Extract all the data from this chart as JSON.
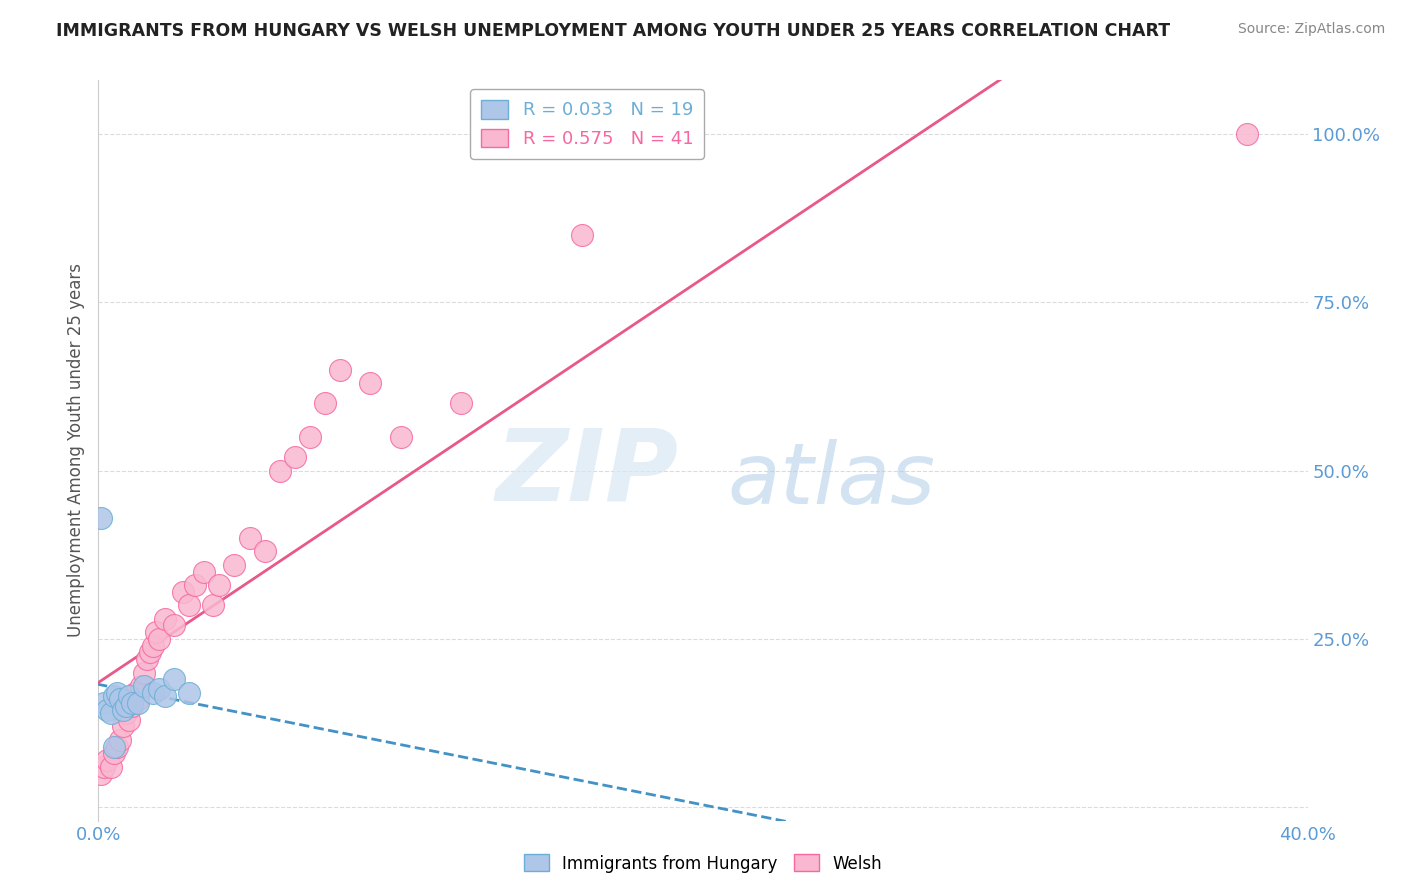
{
  "title": "IMMIGRANTS FROM HUNGARY VS WELSH UNEMPLOYMENT AMONG YOUTH UNDER 25 YEARS CORRELATION CHART",
  "source": "Source: ZipAtlas.com",
  "ylabel": "Unemployment Among Youth under 25 years",
  "xlim": [
    0.0,
    0.4
  ],
  "ylim": [
    -0.02,
    1.08
  ],
  "xticks": [
    0.0,
    0.05,
    0.1,
    0.15,
    0.2,
    0.25,
    0.3,
    0.35,
    0.4
  ],
  "xticklabels": [
    "0.0%",
    "",
    "",
    "",
    "",
    "",
    "",
    "",
    "40.0%"
  ],
  "yticks": [
    0.0,
    0.25,
    0.5,
    0.75,
    1.0
  ],
  "yticklabels": [
    "",
    "25.0%",
    "50.0%",
    "75.0%",
    "100.0%"
  ],
  "legend_entries": [
    {
      "label": "R = 0.033   N = 19",
      "color": "#6baed6"
    },
    {
      "label": "R = 0.575   N = 41",
      "color": "#f768a1"
    }
  ],
  "hungary_x": [
    0.001,
    0.002,
    0.003,
    0.004,
    0.005,
    0.006,
    0.007,
    0.008,
    0.009,
    0.01,
    0.011,
    0.013,
    0.015,
    0.018,
    0.02,
    0.022,
    0.025,
    0.03,
    0.005
  ],
  "hungary_y": [
    0.43,
    0.155,
    0.145,
    0.14,
    0.165,
    0.17,
    0.16,
    0.145,
    0.15,
    0.165,
    0.155,
    0.155,
    0.18,
    0.17,
    0.175,
    0.165,
    0.19,
    0.17,
    0.09
  ],
  "welsh_x": [
    0.001,
    0.002,
    0.003,
    0.004,
    0.005,
    0.006,
    0.007,
    0.008,
    0.009,
    0.01,
    0.011,
    0.012,
    0.013,
    0.014,
    0.015,
    0.016,
    0.017,
    0.018,
    0.019,
    0.02,
    0.022,
    0.025,
    0.028,
    0.03,
    0.032,
    0.035,
    0.038,
    0.04,
    0.045,
    0.05,
    0.055,
    0.06,
    0.065,
    0.07,
    0.075,
    0.08,
    0.09,
    0.1,
    0.12,
    0.16,
    0.38
  ],
  "welsh_y": [
    0.05,
    0.06,
    0.07,
    0.06,
    0.08,
    0.09,
    0.1,
    0.12,
    0.14,
    0.13,
    0.15,
    0.17,
    0.16,
    0.18,
    0.2,
    0.22,
    0.23,
    0.24,
    0.26,
    0.25,
    0.28,
    0.27,
    0.32,
    0.3,
    0.33,
    0.35,
    0.3,
    0.33,
    0.36,
    0.4,
    0.38,
    0.5,
    0.52,
    0.55,
    0.6,
    0.65,
    0.63,
    0.55,
    0.6,
    0.85,
    1.0
  ],
  "scatter_marker_size": 250,
  "blue_color": "#aec6e8",
  "pink_color": "#f9b8d0",
  "blue_edge_color": "#6baed6",
  "pink_edge_color": "#f768a1",
  "blue_line_color": "#4292c6",
  "pink_line_color": "#e8588a",
  "watermark_top": "ZIP",
  "watermark_bottom": "atlas",
  "background_color": "#ffffff",
  "grid_color": "#cccccc"
}
